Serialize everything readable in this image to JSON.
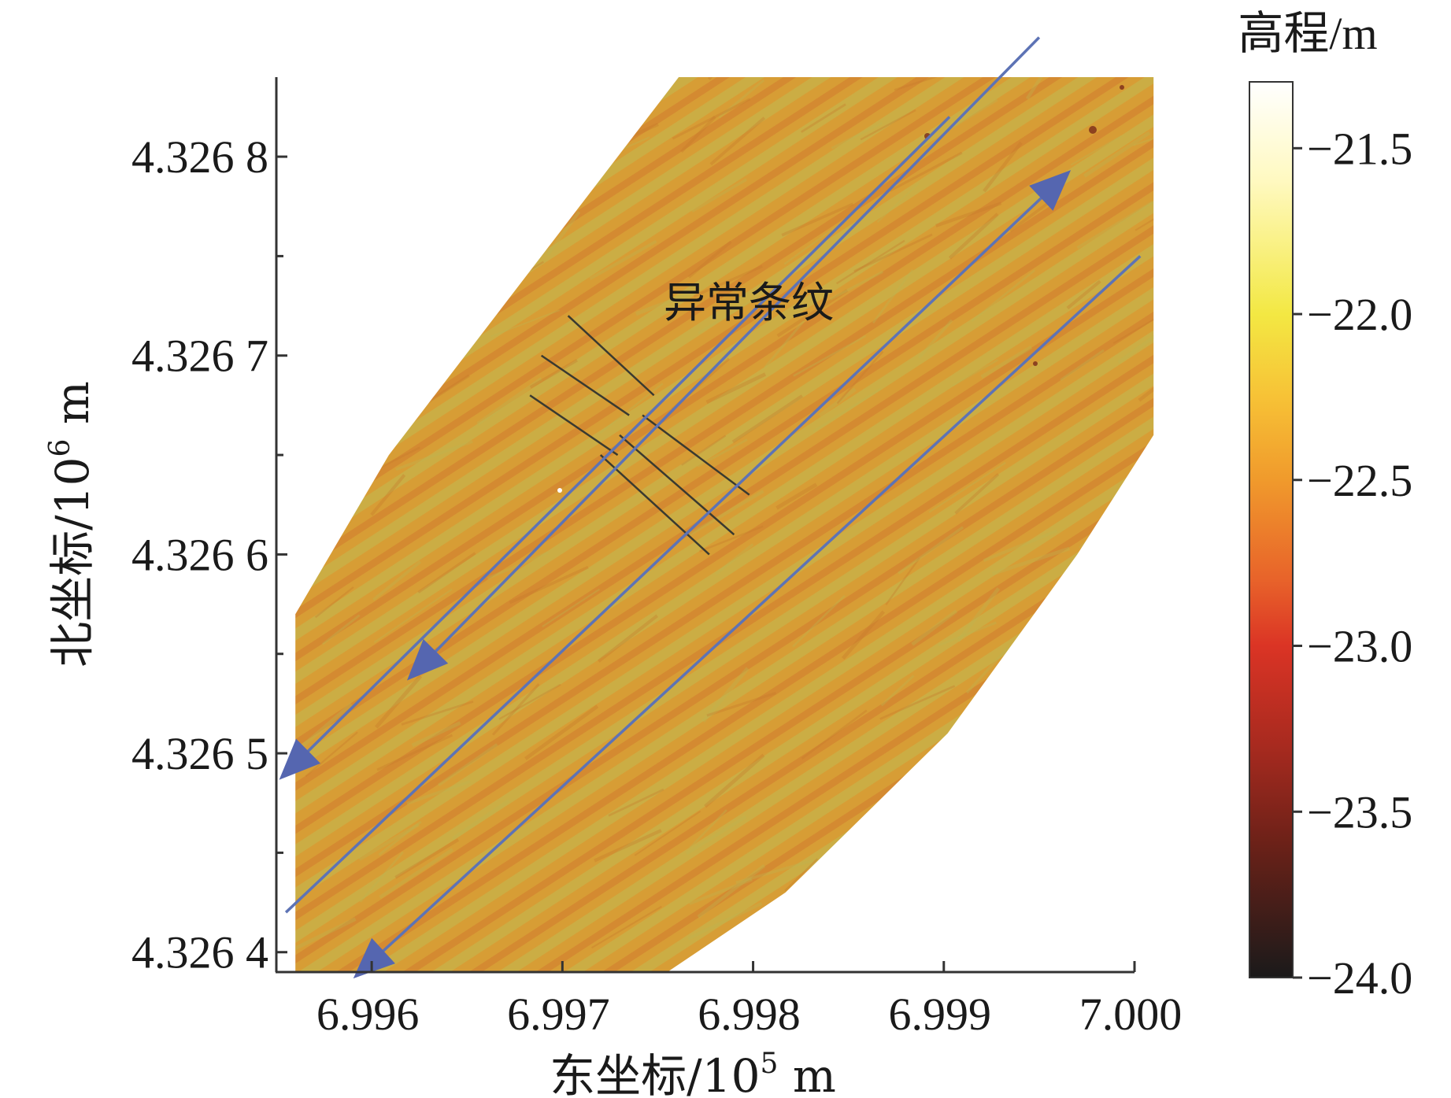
{
  "chart_data": {
    "type": "heatmap",
    "title": "",
    "xlabel": "东坐标/10",
    "xlabel_exp": "5",
    "xlabel_unit": " m",
    "ylabel": "北坐标/10",
    "ylabel_exp": "6",
    "ylabel_unit": " m",
    "xlim": [
      6.9955,
      7.0
    ],
    "ylim": [
      4.32639,
      4.32684
    ],
    "x_ticks": [
      6.996,
      6.997,
      6.998,
      6.999,
      7.0
    ],
    "x_tick_labels": [
      "6.996",
      "6.997",
      "6.998",
      "6.999",
      "7.000"
    ],
    "y_ticks": [
      4.3264,
      4.3265,
      4.3266,
      4.3267,
      4.3268
    ],
    "y_tick_labels": [
      "4.326 4",
      "4.326 5",
      "4.326 6",
      "4.326 7",
      "4.326 8"
    ],
    "y_minor_ticks": [
      4.32645,
      4.32655,
      4.32665,
      4.32675
    ],
    "survey_area_polygon": [
      [
        6.9956,
        4.32639
      ],
      [
        6.99755,
        4.32639
      ],
      [
        6.99817,
        4.32643
      ],
      [
        6.99902,
        4.32651
      ],
      [
        6.9997,
        4.3266
      ],
      [
        7.0001,
        4.32666
      ],
      [
        7.0001,
        4.32684
      ],
      [
        6.99761,
        4.32684
      ],
      [
        6.99609,
        4.32665
      ],
      [
        6.9956,
        4.32657
      ]
    ],
    "survey_lines": [
      {
        "from": [
          7.00003,
          4.32675
        ],
        "to": [
          6.99594,
          4.32639
        ],
        "direction": "to-start"
      },
      {
        "from": [
          6.99555,
          4.32642
        ],
        "to": [
          6.99963,
          4.32679
        ],
        "direction": "to-end"
      },
      {
        "from": [
          6.99903,
          4.32682
        ],
        "to": [
          6.99555,
          4.32649
        ],
        "direction": "to-end"
      },
      {
        "from": [
          6.9995,
          4.32686
        ],
        "to": [
          6.99622,
          4.32654
        ],
        "direction": "to-end"
      }
    ],
    "anomaly_label": "异常条纹",
    "anomaly_segments": [
      [
        [
          6.99703,
          4.32672
        ],
        [
          6.99748,
          4.32668
        ]
      ],
      [
        [
          6.99689,
          4.3267
        ],
        [
          6.99735,
          4.32667
        ]
      ],
      [
        [
          6.99683,
          4.32668
        ],
        [
          6.99729,
          4.32665
        ]
      ],
      [
        [
          6.99742,
          4.32667
        ],
        [
          6.99798,
          4.32663
        ]
      ],
      [
        [
          6.9973,
          4.32666
        ],
        [
          6.9979,
          4.32661
        ]
      ],
      [
        [
          6.9972,
          4.32665
        ],
        [
          6.99777,
          4.3266
        ]
      ]
    ],
    "colorbar": {
      "title": "高程/m",
      "range": [
        -24.0,
        -21.3
      ],
      "ticks": [
        -21.5,
        -22.0,
        -22.5,
        -23.0,
        -23.5,
        -24.0
      ],
      "tick_labels": [
        "−21.5",
        "−22.0",
        "−22.5",
        "−23.0",
        "−23.5",
        "−24.0"
      ],
      "stops": [
        {
          "value": -21.3,
          "color": "#ffffff"
        },
        {
          "value": -21.6,
          "color": "#fff9c0"
        },
        {
          "value": -22.0,
          "color": "#f3e843"
        },
        {
          "value": -22.25,
          "color": "#f7c236"
        },
        {
          "value": -22.5,
          "color": "#f09a2c"
        },
        {
          "value": -22.8,
          "color": "#e8632a"
        },
        {
          "value": -23.0,
          "color": "#db3425"
        },
        {
          "value": -23.3,
          "color": "#a82a1f"
        },
        {
          "value": -23.6,
          "color": "#6b2118"
        },
        {
          "value": -24.0,
          "color": "#1a1a1a"
        }
      ]
    }
  },
  "colors": {
    "area_fill": "#d79d35",
    "stripe_light": "#c8b248",
    "stripe_dark": "#d3832e",
    "survey_line": "#5d73b5",
    "arrow_head": "#5566b0",
    "anomaly_line": "#3a3a30",
    "axis": "#333333"
  }
}
